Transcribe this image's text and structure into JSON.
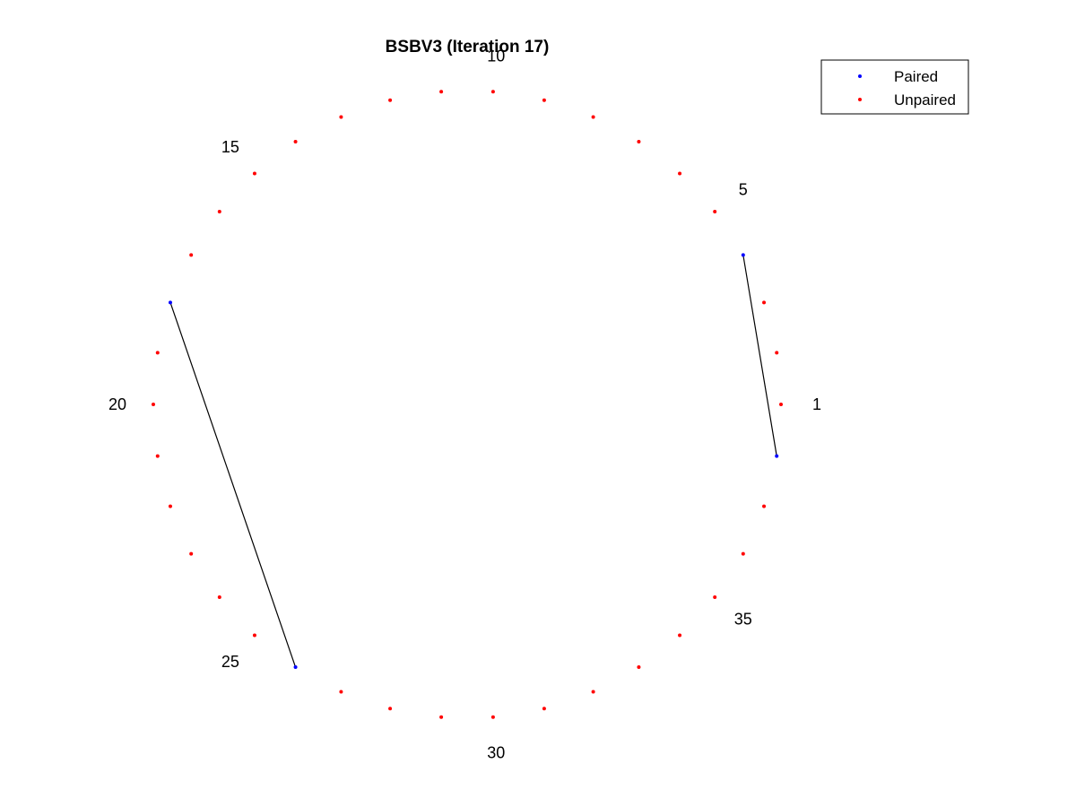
{
  "chart_data": {
    "type": "scatter",
    "title": "BSBV3 (Iteration 17)",
    "total_positions": 38,
    "pairs": [
      [
        4,
        38
      ],
      [
        18,
        26
      ]
    ],
    "position_labels": [
      {
        "position": 1,
        "text": "1"
      },
      {
        "position": 5,
        "text": "5"
      },
      {
        "position": 10,
        "text": "10"
      },
      {
        "position": 15,
        "text": "15"
      },
      {
        "position": 20,
        "text": "20"
      },
      {
        "position": 25,
        "text": "25"
      },
      {
        "position": 30,
        "text": "30"
      },
      {
        "position": 35,
        "text": "35"
      }
    ],
    "series": [
      {
        "name": "Paired",
        "color": "#0000ff",
        "positions": [
          4,
          18,
          26,
          38
        ]
      },
      {
        "name": "Unpaired",
        "color": "#ff0000",
        "positions": [
          1,
          2,
          3,
          5,
          6,
          7,
          8,
          9,
          10,
          11,
          12,
          13,
          14,
          15,
          16,
          17,
          19,
          20,
          21,
          22,
          23,
          24,
          25,
          27,
          28,
          29,
          30,
          31,
          32,
          33,
          34,
          35,
          36,
          37
        ]
      }
    ],
    "pair_line_color": "#000000",
    "legend": {
      "placement": "top-right",
      "entries": [
        {
          "label": "Paired",
          "color": "#0000ff"
        },
        {
          "label": "Unpaired",
          "color": "#ff0000"
        }
      ]
    },
    "axes_visible": false,
    "grid": false
  }
}
